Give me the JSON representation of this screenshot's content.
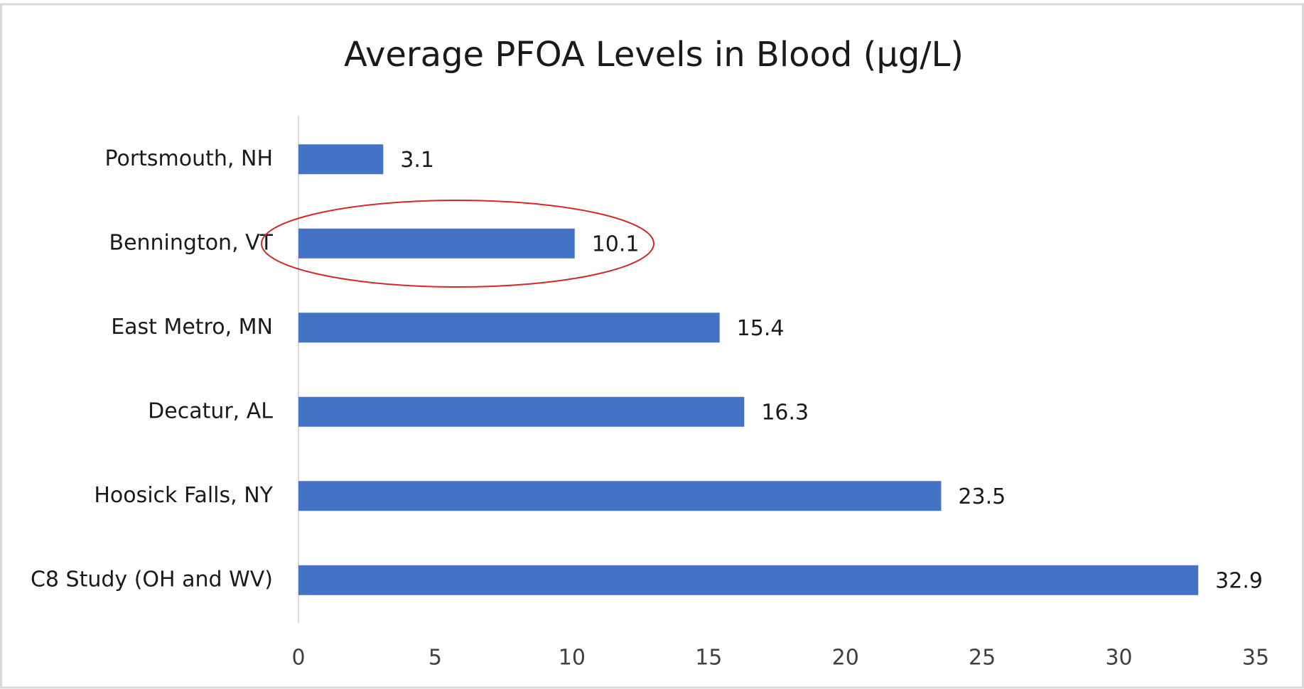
{
  "chart_data": {
    "type": "bar",
    "orientation": "horizontal",
    "title": "Average PFOA Levels in Blood (µg/L)",
    "categories": [
      "Portsmouth, NH",
      "Bennington, VT",
      "East Metro, MN",
      "Decatur, AL",
      "Hoosick Falls, NY",
      "C8 Study (OH and WV)"
    ],
    "values": [
      3.1,
      10.1,
      15.4,
      16.3,
      23.5,
      32.9
    ],
    "color": "#4472c4",
    "xlim": [
      0,
      35
    ],
    "xticks": [
      0,
      5,
      10,
      15,
      20,
      25,
      30,
      35
    ],
    "grid": false
  }
}
